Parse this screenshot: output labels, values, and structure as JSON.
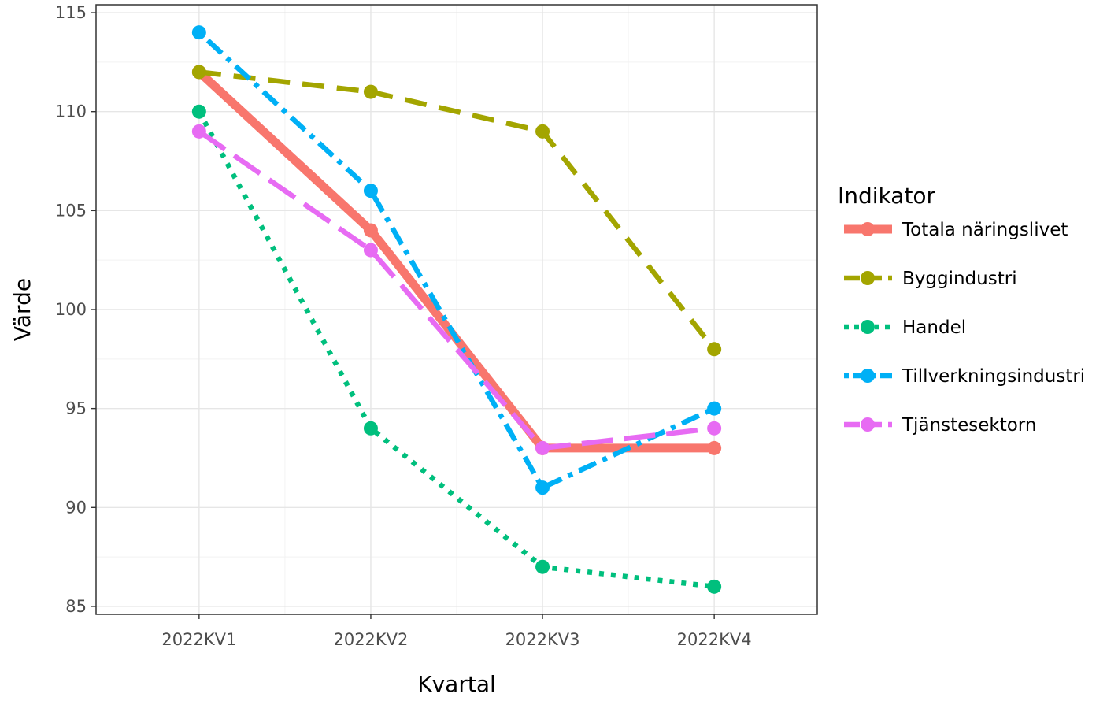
{
  "chart_data": {
    "type": "line",
    "title": "",
    "xlabel": "Kvartal",
    "ylabel": "Värde",
    "categories": [
      "2022KV1",
      "2022KV2",
      "2022KV3",
      "2022KV4"
    ],
    "ylim": [
      84.6,
      115.4
    ],
    "yticks": [
      85,
      90,
      95,
      100,
      105,
      110,
      115
    ],
    "grid": true,
    "legend": {
      "title": "Indikator",
      "position": "right"
    },
    "series": [
      {
        "name": "Totala näringslivet",
        "values": [
          112,
          104,
          93,
          93
        ],
        "color": "#F8766D",
        "dash": "solid"
      },
      {
        "name": "Byggindustri",
        "values": [
          112,
          111,
          109,
          98
        ],
        "color": "#A3A500",
        "dash": "dashed"
      },
      {
        "name": "Handel",
        "values": [
          110,
          94,
          87,
          86
        ],
        "color": "#00BF7D",
        "dash": "dotted"
      },
      {
        "name": "Tillverkningsindustri",
        "values": [
          114,
          106,
          91,
          95
        ],
        "color": "#00B0F6",
        "dash": "dotdash"
      },
      {
        "name": "Tjänstesektorn",
        "values": [
          109,
          103,
          93,
          94
        ],
        "color": "#E76BF3",
        "dash": "longdash"
      }
    ]
  }
}
